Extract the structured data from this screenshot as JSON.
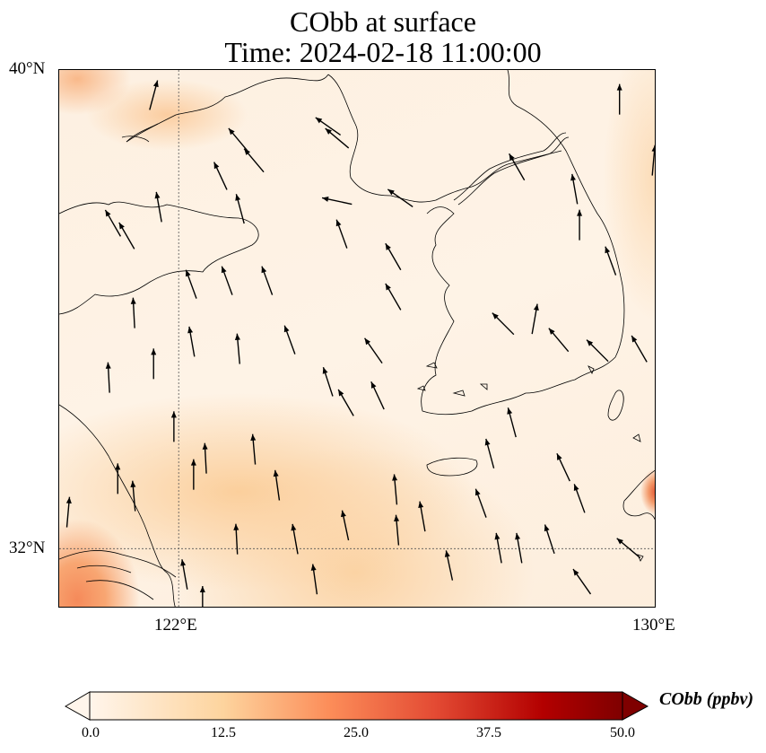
{
  "title": {
    "line1": "CObb at surface",
    "line2": "Time: 2024-02-18 11:00:00"
  },
  "map": {
    "lon_range": [
      120,
      130
    ],
    "lat_range": [
      31,
      40
    ],
    "lat_ticks": [
      {
        "value": 40,
        "label": "40°N"
      },
      {
        "value": 32,
        "label": "32°N"
      }
    ],
    "lon_ticks": [
      {
        "value": 122,
        "label": "122°E"
      },
      {
        "value": 130,
        "label": "130°E"
      }
    ],
    "gridlines": {
      "lon": [
        122
      ],
      "lat": [
        32
      ]
    },
    "wind_vectors_lon_lat_dirdeg": [
      [
        120.83,
        34.86,
        -3
      ],
      [
        121.25,
        35.94,
        -3
      ],
      [
        121.92,
        34.04,
        0
      ],
      [
        121.58,
        35.09,
        0
      ],
      [
        122.45,
        33.51,
        -3
      ],
      [
        122.25,
        33.24,
        0
      ],
      [
        122.97,
        32.16,
        -3
      ],
      [
        123.26,
        33.66,
        -5
      ],
      [
        123.65,
        33.06,
        -8
      ],
      [
        123.95,
        32.16,
        -10
      ],
      [
        124.28,
        31.49,
        -8
      ],
      [
        124.79,
        32.39,
        -12
      ],
      [
        125.66,
        32.31,
        -5
      ],
      [
        126.08,
        32.54,
        -10
      ],
      [
        126.53,
        31.72,
        -12
      ],
      [
        127.21,
        33.59,
        -15
      ],
      [
        127.58,
        34.11,
        -15
      ],
      [
        128.44,
        33.36,
        -25
      ],
      [
        128.71,
        32.84,
        -20
      ],
      [
        128.21,
        32.16,
        -18
      ],
      [
        127.7,
        32.01,
        -10
      ],
      [
        127.36,
        32.01,
        -10
      ],
      [
        127.06,
        32.76,
        -20
      ],
      [
        125.63,
        32.99,
        -5
      ],
      [
        124.5,
        34.79,
        -18
      ],
      [
        124.8,
        34.44,
        -30
      ],
      [
        125.33,
        34.56,
        -25
      ],
      [
        125.26,
        35.31,
        -35
      ],
      [
        123.86,
        35.49,
        -20
      ],
      [
        123.48,
        36.48,
        -20
      ],
      [
        122.81,
        36.48,
        -20
      ],
      [
        122.21,
        36.42,
        -20
      ],
      [
        123.0,
        35.34,
        -5
      ],
      [
        122.22,
        35.46,
        -10
      ],
      [
        124.73,
        37.26,
        -20
      ],
      [
        125.59,
        36.88,
        -30
      ],
      [
        125.59,
        36.21,
        -30
      ],
      [
        123.03,
        37.68,
        -15
      ],
      [
        122.7,
        38.23,
        -25
      ],
      [
        123.26,
        38.49,
        -40
      ],
      [
        123.0,
        38.83,
        -40
      ],
      [
        124.5,
        39.06,
        -55
      ],
      [
        124.65,
        38.86,
        -50
      ],
      [
        124.65,
        37.81,
        -78
      ],
      [
        125.71,
        37.86,
        -55
      ],
      [
        121.67,
        37.71,
        -10
      ],
      [
        121.13,
        37.23,
        -30
      ],
      [
        120.9,
        37.44,
        -30
      ],
      [
        121.58,
        39.58,
        15
      ],
      [
        129.38,
        39.51,
        0
      ],
      [
        129.95,
        38.49,
        5
      ],
      [
        128.71,
        37.41,
        0
      ],
      [
        128.63,
        38.01,
        -10
      ],
      [
        127.66,
        38.38,
        -30
      ],
      [
        127.43,
        35.76,
        -45
      ],
      [
        127.96,
        35.84,
        10
      ],
      [
        128.36,
        35.49,
        -40
      ],
      [
        129.01,
        35.31,
        -45
      ],
      [
        129.71,
        35.34,
        -30
      ],
      [
        129.23,
        36.81,
        -20
      ],
      [
        129.53,
        32.01,
        -50
      ],
      [
        128.75,
        31.45,
        -35
      ],
      [
        122.1,
        31.57,
        -10
      ],
      [
        122.4,
        31.12,
        0
      ],
      [
        120.15,
        32.61,
        5
      ],
      [
        120.98,
        33.17,
        0
      ],
      [
        121.25,
        32.88,
        -5
      ]
    ]
  },
  "colorbar": {
    "label": "CObb (ppbv)",
    "ticks": [
      "0.0",
      "12.5",
      "25.0",
      "37.5",
      "50.0"
    ],
    "range": [
      0,
      50
    ],
    "colors": [
      "#fff5eb",
      "#fdd49e",
      "#fc8d59",
      "#e34a33",
      "#b30000",
      "#7f0000"
    ]
  }
}
